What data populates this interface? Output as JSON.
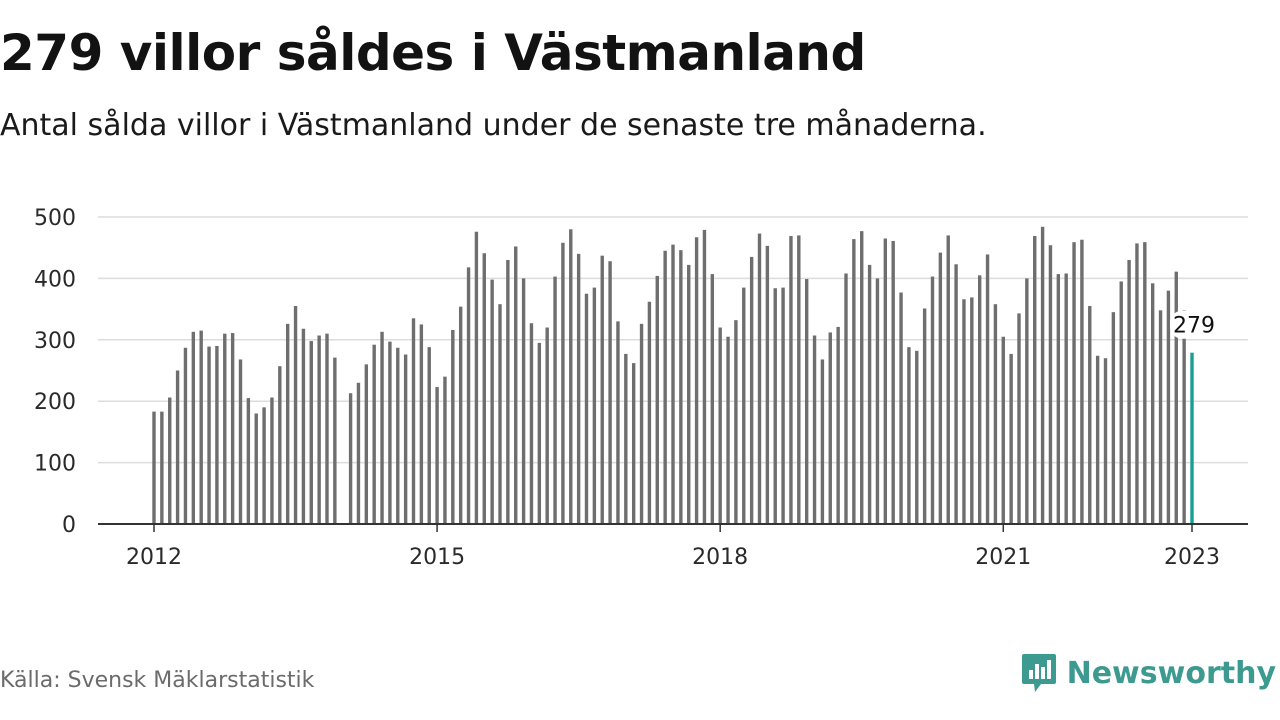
{
  "title": "279 villor såldes i Västmanland",
  "subtitle": "Antal sålda villor i Västmanland under de senaste tre månaderna.",
  "source": "Källa: Svensk Mäklarstatistik",
  "brand": {
    "name": "Newsworthy",
    "icon": "newsworthy-logo-icon"
  },
  "colors": {
    "bar": "#6e6e6e",
    "highlight": "#1a9e93",
    "brand": "#3d9a90",
    "grid": "#dcdcdc",
    "axis": "#333333"
  },
  "chart_data": {
    "type": "bar",
    "title": "279 villor såldes i Västmanland",
    "subtitle": "Antal sålda villor i Västmanland under de senaste tre månaderna.",
    "xlabel": "",
    "ylabel": "",
    "ylim": [
      0,
      500
    ],
    "yticks": [
      0,
      100,
      200,
      300,
      400,
      500
    ],
    "xticks": [
      "2012",
      "2015",
      "2018",
      "2021",
      "2023"
    ],
    "grid": true,
    "start_period": "2012-01",
    "highlight": {
      "period": "2023-01",
      "value": 279,
      "label": "279"
    },
    "series": [
      {
        "values": [
          183,
          183,
          206,
          250,
          287,
          313,
          315,
          289,
          290,
          310,
          311,
          268,
          205,
          180,
          190,
          206,
          257,
          326,
          355,
          318,
          298,
          307,
          310,
          271,
          null,
          213,
          230,
          260,
          292,
          313,
          297,
          287,
          276,
          335,
          325,
          288,
          223,
          240,
          316,
          354,
          418,
          476,
          441,
          398,
          358,
          430,
          452,
          400,
          327,
          295,
          320,
          403,
          458,
          480,
          440,
          375,
          385,
          437,
          428,
          330,
          277,
          262,
          326,
          362,
          404,
          445,
          455,
          446,
          422,
          467,
          479,
          407,
          320,
          305,
          332,
          385,
          435,
          473,
          453,
          384,
          385,
          469,
          470,
          399,
          307,
          268,
          312,
          321,
          408,
          464,
          477,
          422,
          400,
          465,
          461,
          377,
          288,
          282,
          351,
          403,
          442,
          470,
          423,
          366,
          369,
          405,
          439,
          358,
          305,
          277,
          343,
          400,
          469,
          484,
          454,
          407,
          408,
          459,
          463,
          355,
          274,
          270,
          345,
          395,
          430,
          457,
          459,
          392,
          348,
          380,
          411,
          348,
          279
        ]
      }
    ]
  }
}
